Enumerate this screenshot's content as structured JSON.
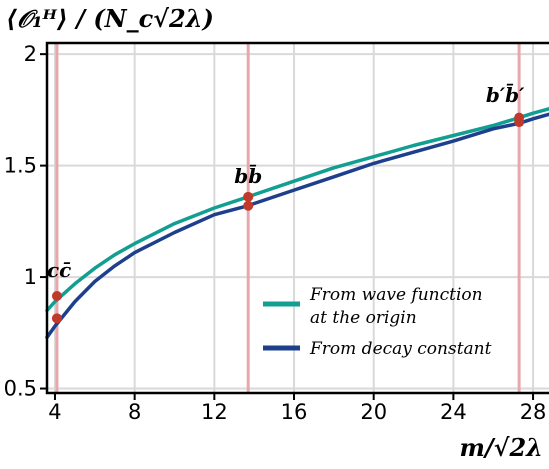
{
  "chart_data": {
    "type": "line",
    "ylabel": "⟨𝒪₁ᴴ⟩ / (N_c√2λ)",
    "xlabel": "m/√2λ",
    "xlim": [
      3.6,
      28.8
    ],
    "ylim": [
      0.48,
      2.05
    ],
    "xticks": [
      4,
      8,
      12,
      16,
      20,
      24,
      28
    ],
    "yticks": [
      0.5,
      1,
      1.5,
      2
    ],
    "ytick_labels": [
      "0.5",
      "1",
      "1.5",
      "2"
    ],
    "grid": true,
    "legend_position": "lower-right",
    "series": [
      {
        "name": "From wave function at the origin",
        "color": "#139e92",
        "x": [
          3.6,
          4,
          5,
          6,
          7,
          8,
          10,
          12,
          13.7,
          14,
          16,
          18,
          20,
          22,
          24,
          26,
          27.3,
          28,
          28.8
        ],
        "y": [
          0.85,
          0.89,
          0.97,
          1.04,
          1.1,
          1.15,
          1.24,
          1.31,
          1.36,
          1.37,
          1.43,
          1.49,
          1.54,
          1.59,
          1.635,
          1.68,
          1.715,
          1.735,
          1.755
        ]
      },
      {
        "name": "From decay constant",
        "color": "#1e3f8c",
        "x": [
          3.6,
          4,
          5,
          6,
          7,
          8,
          10,
          12,
          13.7,
          14,
          16,
          18,
          20,
          22,
          24,
          26,
          27.3,
          28,
          28.8
        ],
        "y": [
          0.73,
          0.78,
          0.89,
          0.98,
          1.05,
          1.11,
          1.2,
          1.28,
          1.32,
          1.33,
          1.39,
          1.45,
          1.51,
          1.56,
          1.61,
          1.665,
          1.69,
          1.71,
          1.73
        ]
      }
    ],
    "vertical_lines": [
      {
        "label": "cc̄",
        "x": 4.1
      },
      {
        "label": "bb̄",
        "x": 13.7
      },
      {
        "label": "b′b̄′",
        "x": 27.3
      }
    ],
    "markers": [
      {
        "x": 4.1,
        "y": 0.915
      },
      {
        "x": 4.1,
        "y": 0.815
      },
      {
        "x": 13.7,
        "y": 1.36
      },
      {
        "x": 13.7,
        "y": 1.32
      },
      {
        "x": 27.3,
        "y": 1.715
      },
      {
        "x": 27.3,
        "y": 1.695
      }
    ],
    "colors": {
      "marker": "#c0392b",
      "vline": "#e8a8ab",
      "grid": "#d9d9d9"
    }
  }
}
